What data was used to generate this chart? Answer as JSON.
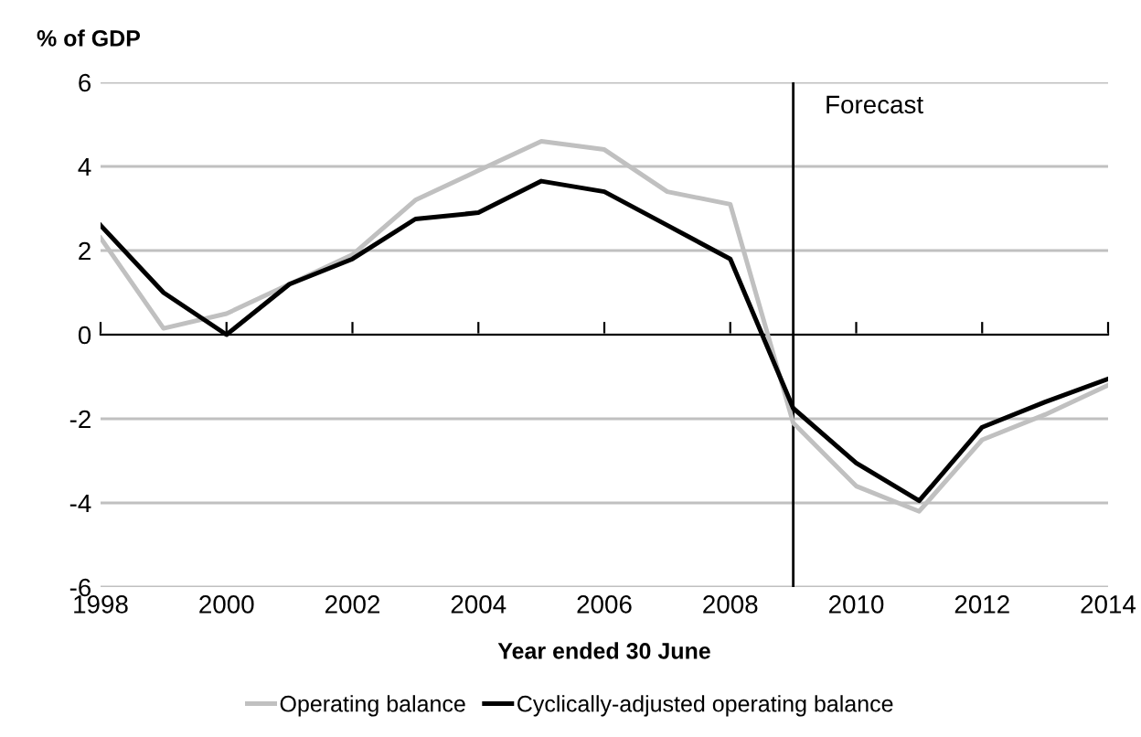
{
  "chart_data": {
    "type": "line",
    "ylabel": "% of GDP",
    "xlabel": "Year ended 30 June",
    "x": [
      1998,
      1999,
      2000,
      2001,
      2002,
      2003,
      2004,
      2005,
      2006,
      2007,
      2008,
      2009,
      2010,
      2011,
      2012,
      2013,
      2014
    ],
    "series": [
      {
        "name": "Operating balance",
        "color": "#c0c0c0",
        "values": [
          2.3,
          0.15,
          0.5,
          1.2,
          1.9,
          3.2,
          3.9,
          4.6,
          4.4,
          3.4,
          3.1,
          -2.1,
          -3.6,
          -4.2,
          -2.5,
          -1.9,
          -1.2
        ]
      },
      {
        "name": "Cyclically-adjusted operating balance",
        "color": "#000000",
        "values": [
          2.6,
          1.0,
          0.0,
          1.2,
          1.8,
          2.75,
          2.9,
          3.65,
          3.4,
          2.6,
          1.8,
          -1.75,
          -3.05,
          -3.95,
          -2.2,
          -1.6,
          -1.05
        ]
      }
    ],
    "xlim": [
      1998,
      2014
    ],
    "xticks": [
      1998,
      2000,
      2002,
      2004,
      2006,
      2008,
      2010,
      2012,
      2014
    ],
    "ylim": [
      -6,
      6
    ],
    "yticks": [
      -6,
      -4,
      -2,
      0,
      2,
      4,
      6
    ],
    "grid": "y",
    "legend": "bottom",
    "marker": "none",
    "line_style": "solid",
    "ref_lines": [
      {
        "axis": "x",
        "value": 2009,
        "label": "Forecast",
        "color": "#000000"
      }
    ]
  }
}
